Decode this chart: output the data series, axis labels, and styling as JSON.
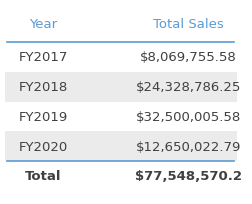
{
  "header": [
    "Year",
    "Total Sales"
  ],
  "rows": [
    [
      "FY2017",
      "$8,069,755.58"
    ],
    [
      "FY2018",
      "$24,328,786.25"
    ],
    [
      "FY2019",
      "$32,500,005.58"
    ],
    [
      "FY2020",
      "$12,650,022.79"
    ]
  ],
  "total_row": [
    "Total",
    "$77,548,570.2"
  ],
  "row_bg_colors": [
    "#ffffff",
    "#ebebeb",
    "#ffffff",
    "#ebebeb"
  ],
  "header_text_color": "#5b9bd5",
  "body_text_color": "#404040",
  "total_text_color": "#404040",
  "separator_color": "#5b9bd5",
  "background_color": "#ffffff",
  "header_fontsize": 9.5,
  "body_fontsize": 9.5,
  "total_fontsize": 9.5
}
